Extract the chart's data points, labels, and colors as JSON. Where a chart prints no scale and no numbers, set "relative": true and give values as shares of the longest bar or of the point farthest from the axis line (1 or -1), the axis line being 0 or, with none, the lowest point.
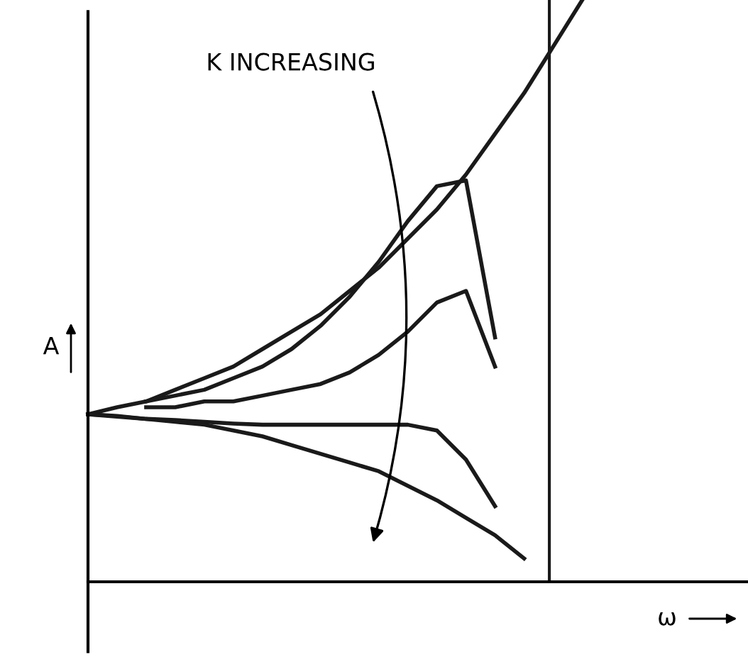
{
  "chart_data": {
    "type": "line",
    "relative": true,
    "xlabel": "ω",
    "ylabel": "A",
    "marker": "none",
    "line_style": "solid",
    "categories": [
      null,
      null,
      null,
      null,
      null,
      null,
      null,
      null,
      null,
      null,
      null,
      null,
      null,
      null,
      null,
      null,
      null,
      null,
      null,
      null,
      null,
      null,
      null
    ],
    "series": [
      {
        "color": "#1a1a1a",
        "values": [
          0.288,
          0.3,
          0.31,
          0.33,
          0.35,
          0.37,
          0.4,
          0.43,
          0.46,
          0.5,
          0.54,
          0.59,
          0.64,
          0.7,
          0.77,
          0.84,
          0.92,
          1.0,
          null,
          null,
          null,
          null,
          null
        ]
      },
      {
        "color": "#1a1a1a",
        "values": [
          null,
          null,
          0.31,
          0.32,
          0.33,
          0.35,
          0.37,
          0.4,
          0.44,
          0.49,
          0.55,
          0.62,
          0.68,
          0.69,
          0.42,
          null,
          null,
          null,
          null,
          null,
          null,
          null,
          null
        ]
      },
      {
        "color": "#1a1a1a",
        "values": [
          null,
          null,
          0.3,
          0.3,
          0.31,
          0.31,
          0.32,
          0.33,
          0.34,
          0.36,
          0.39,
          0.43,
          0.48,
          0.5,
          0.37,
          null,
          null,
          null,
          null,
          null,
          null,
          null,
          null
        ]
      },
      {
        "color": "#1a1a1a",
        "values": [
          0.288,
          0.285,
          0.28,
          0.278,
          0.275,
          0.272,
          0.27,
          0.27,
          0.27,
          0.27,
          0.27,
          0.27,
          0.26,
          0.21,
          0.13,
          null,
          null,
          null,
          null,
          null,
          null,
          null,
          null
        ]
      },
      {
        "color": "#1a1a1a",
        "values": [
          0.288,
          0.284,
          0.28,
          0.275,
          0.27,
          0.26,
          0.25,
          0.235,
          0.22,
          0.205,
          0.19,
          0.165,
          0.14,
          0.11,
          0.08,
          0.04,
          null,
          null,
          null,
          null,
          null,
          null,
          null
        ]
      }
    ],
    "annotations": [
      "K INCREASING"
    ]
  }
}
